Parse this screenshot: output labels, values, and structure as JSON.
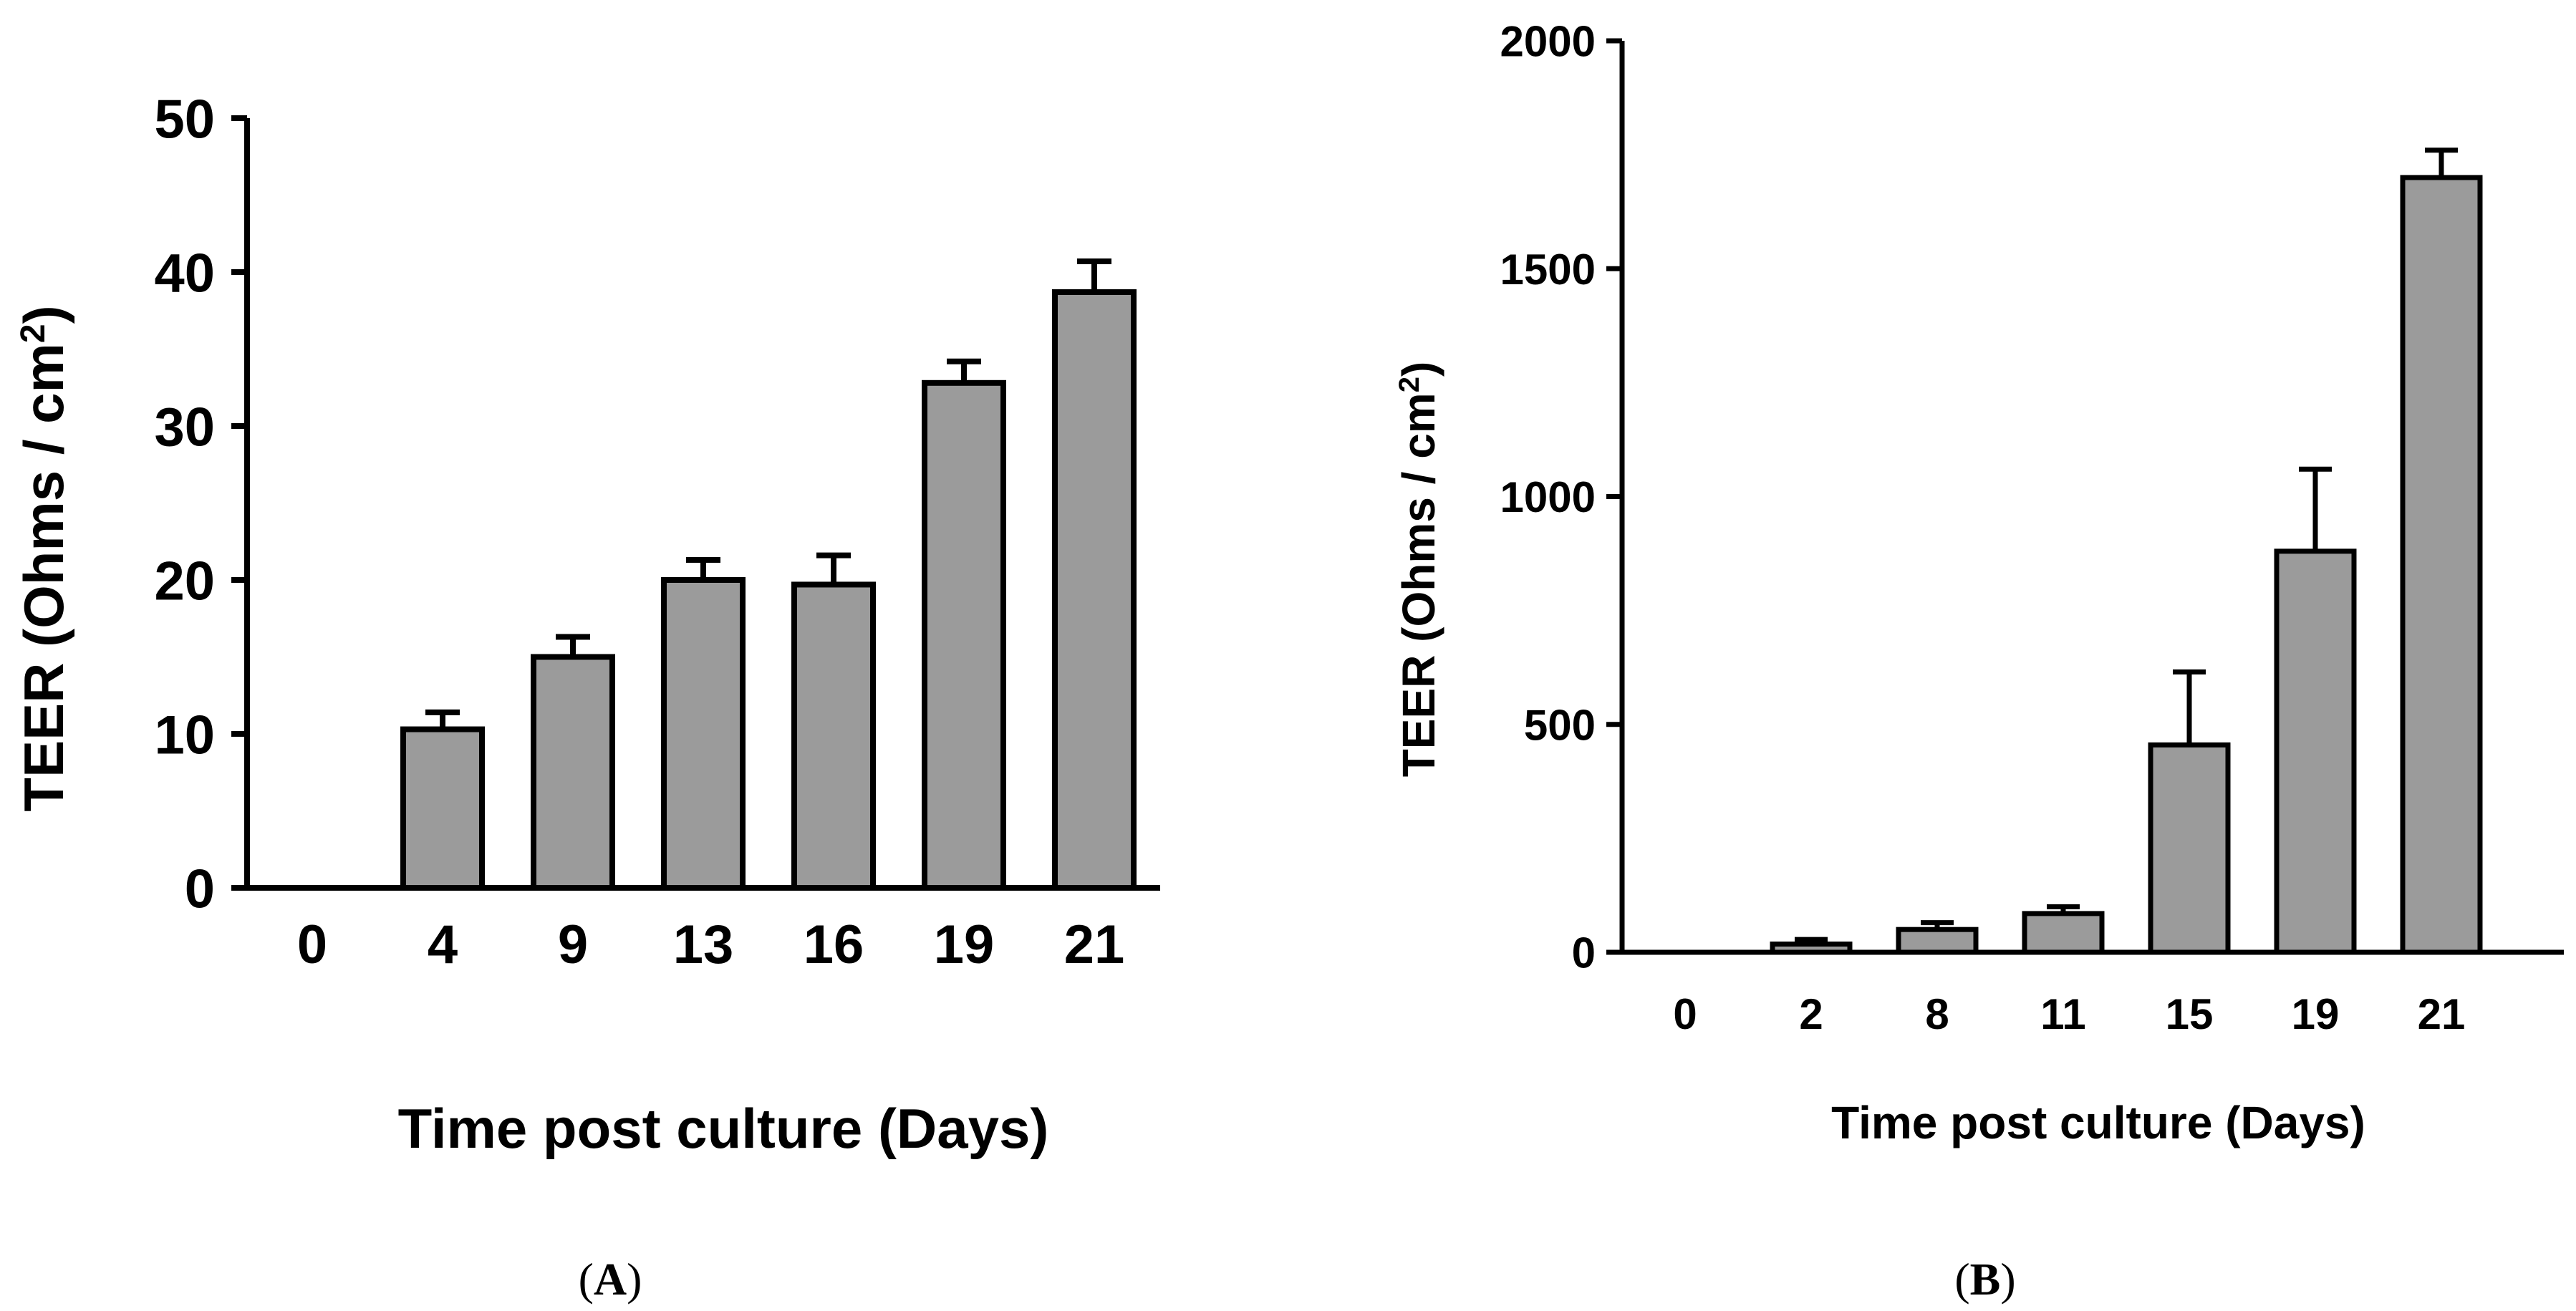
{
  "panels": [
    {
      "label_open": "(",
      "label_letter": "A",
      "label_close": ")"
    },
    {
      "label_open": "(",
      "label_letter": "B",
      "label_close": ")"
    }
  ],
  "colors": {
    "bar_fill": "#9b9b9b",
    "stroke": "#000000"
  },
  "chart_data": [
    {
      "type": "bar",
      "categories": [
        "0",
        "4",
        "9",
        "13",
        "16",
        "19",
        "21"
      ],
      "values": [
        0,
        10.3,
        15.0,
        20.0,
        19.7,
        32.8,
        38.7
      ],
      "errors": [
        0,
        1.1,
        1.3,
        1.3,
        1.9,
        1.4,
        2.0
      ],
      "xlabel": "Time post culture (Days)",
      "ylabel": "TEER  (Ohms / cm",
      "ylabel_sup": "2",
      "ylabel_close": ")",
      "ylim": [
        0,
        50
      ],
      "yticks": [
        0,
        10,
        20,
        30,
        40,
        50
      ],
      "grid": false
    },
    {
      "type": "bar",
      "categories": [
        "0",
        "2",
        "8",
        "11",
        "15",
        "19",
        "21"
      ],
      "values": [
        0,
        18,
        50,
        85,
        455,
        880,
        1700
      ],
      "errors": [
        0,
        10,
        15,
        15,
        160,
        180,
        60
      ],
      "xlabel": "Time post culture (Days)",
      "ylabel": "TEER (Ohms / cm",
      "ylabel_sup": "2",
      "ylabel_close": ")",
      "ylim": [
        0,
        2000
      ],
      "yticks": [
        0,
        500,
        1000,
        1500,
        2000
      ],
      "grid": false
    }
  ]
}
